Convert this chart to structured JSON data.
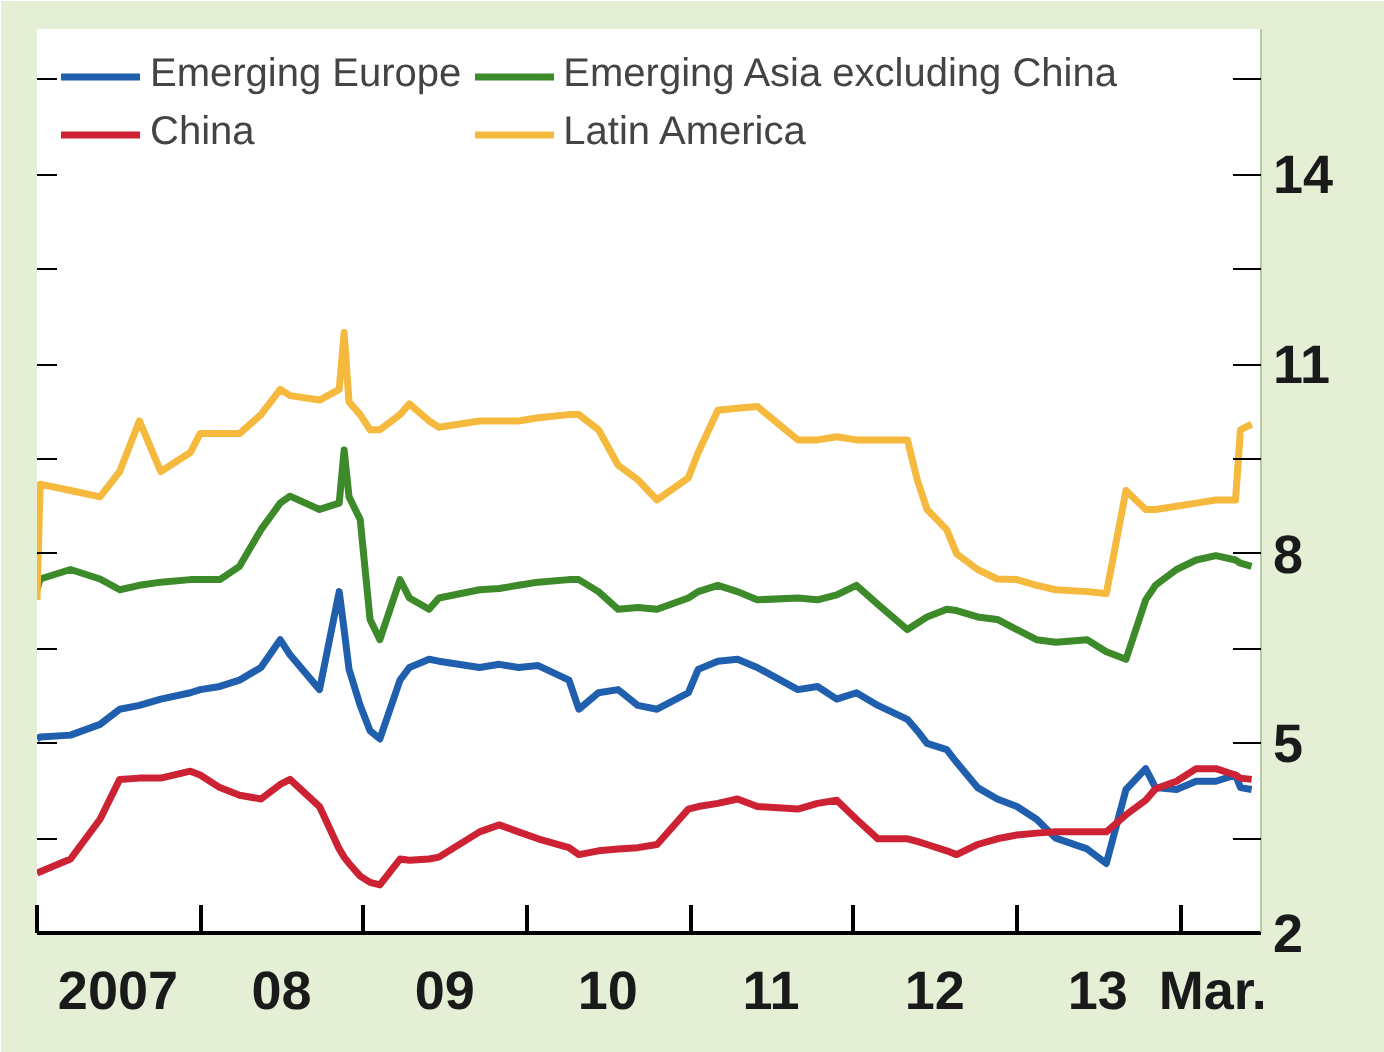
{
  "chart_data": {
    "type": "line",
    "x": [
      "2007-01-01",
      "2007-01-08",
      "2007-03-17",
      "2007-05-22",
      "2007-07-05",
      "2007-08-18",
      "2007-10-05",
      "2007-12-10",
      "2008-01-01",
      "2008-02-14",
      "2008-03-29",
      "2008-05-16",
      "2008-06-28",
      "2008-07-20",
      "2008-09-24",
      "2008-11-07",
      "2008-11-18",
      "2008-11-29",
      "2008-12-24",
      "2009-01-15",
      "2009-02-06",
      "2009-03-23",
      "2009-04-13",
      "2009-05-27",
      "2009-06-18",
      "2009-09-17",
      "2009-10-31",
      "2009-12-13",
      "2010-01-26",
      "2010-04-05",
      "2010-04-27",
      "2010-06-10",
      "2010-07-24",
      "2010-09-06",
      "2010-10-19",
      "2010-12-28",
      "2011-01-19",
      "2011-03-04",
      "2011-04-17",
      "2011-05-31",
      "2011-08-30",
      "2011-10-13",
      "2011-11-25",
      "2012-01-08",
      "2012-02-25",
      "2012-05-01",
      "2012-05-23",
      "2012-06-14",
      "2012-07-28",
      "2012-08-19",
      "2012-10-05",
      "2012-11-18",
      "2013-01-01",
      "2013-02-14",
      "2013-03-29",
      "2013-06-07",
      "2013-07-20",
      "2013-09-02",
      "2013-10-16",
      "2013-11-07",
      "2013-12-24",
      "2014-02-06",
      "2014-03-22",
      "2014-05-05",
      "2014-05-16",
      "2014-06-10"
    ],
    "series": [
      {
        "name": "Emerging Europe",
        "color": "#1f5fad",
        "values": [
          5.07,
          5.1,
          5.13,
          5.3,
          5.54,
          5.6,
          5.7,
          5.8,
          5.85,
          5.9,
          6.0,
          6.2,
          6.64,
          6.4,
          5.85,
          7.4,
          6.8,
          6.17,
          5.6,
          5.2,
          5.07,
          6.0,
          6.2,
          6.33,
          6.3,
          6.2,
          6.25,
          6.2,
          6.23,
          6.0,
          5.54,
          5.8,
          5.85,
          5.6,
          5.54,
          5.8,
          6.17,
          6.3,
          6.33,
          6.2,
          5.85,
          5.9,
          5.7,
          5.8,
          5.6,
          5.38,
          5.2,
          5.0,
          4.9,
          4.7,
          4.3,
          4.12,
          4.0,
          3.8,
          3.5,
          3.33,
          3.1,
          4.27,
          4.6,
          4.3,
          4.27,
          4.4,
          4.4,
          4.5,
          4.3,
          4.27
        ]
      },
      {
        "name": "China",
        "color": "#cc2233",
        "values": [
          2.95,
          2.97,
          3.17,
          3.8,
          4.43,
          4.45,
          4.45,
          4.56,
          4.5,
          4.3,
          4.18,
          4.12,
          4.35,
          4.43,
          4.0,
          3.33,
          3.2,
          3.1,
          2.9,
          2.8,
          2.76,
          3.17,
          3.15,
          3.17,
          3.2,
          3.6,
          3.71,
          3.6,
          3.49,
          3.35,
          3.24,
          3.3,
          3.33,
          3.35,
          3.4,
          3.96,
          4.0,
          4.05,
          4.12,
          4.0,
          3.96,
          4.05,
          4.1,
          3.8,
          3.49,
          3.49,
          3.45,
          3.4,
          3.3,
          3.24,
          3.4,
          3.49,
          3.55,
          3.58,
          3.6,
          3.6,
          3.6,
          3.87,
          4.1,
          4.28,
          4.4,
          4.6,
          4.6,
          4.5,
          4.45,
          4.43
        ]
      },
      {
        "name": "Emerging Asia excluding China",
        "color": "#3d8a2a",
        "values": [
          7.43,
          7.6,
          7.75,
          7.6,
          7.43,
          7.5,
          7.55,
          7.59,
          7.59,
          7.59,
          7.8,
          8.38,
          8.8,
          8.91,
          8.7,
          8.8,
          9.64,
          8.9,
          8.54,
          6.96,
          6.64,
          7.59,
          7.3,
          7.12,
          7.3,
          7.43,
          7.45,
          7.5,
          7.55,
          7.59,
          7.59,
          7.4,
          7.12,
          7.15,
          7.12,
          7.3,
          7.4,
          7.5,
          7.4,
          7.27,
          7.3,
          7.27,
          7.35,
          7.5,
          7.2,
          6.8,
          6.9,
          7.0,
          7.12,
          7.1,
          7.0,
          6.96,
          6.8,
          6.64,
          6.6,
          6.64,
          6.45,
          6.33,
          7.27,
          7.5,
          7.75,
          7.9,
          7.97,
          7.9,
          7.85,
          7.8
        ]
      },
      {
        "name": "Latin America",
        "color": "#f5b93e",
        "values": [
          7.27,
          9.1,
          9.0,
          8.9,
          9.3,
          10.1,
          9.3,
          9.6,
          9.9,
          9.9,
          9.9,
          10.2,
          10.6,
          10.5,
          10.43,
          10.6,
          11.5,
          10.4,
          10.2,
          9.96,
          9.96,
          10.2,
          10.37,
          10.1,
          10.0,
          10.1,
          10.1,
          10.1,
          10.15,
          10.2,
          10.2,
          9.96,
          9.4,
          9.17,
          8.85,
          9.2,
          9.6,
          10.27,
          10.3,
          10.33,
          9.8,
          9.8,
          9.85,
          9.8,
          9.8,
          9.8,
          9.17,
          8.7,
          8.38,
          8.0,
          7.75,
          7.6,
          7.59,
          7.5,
          7.43,
          7.4,
          7.37,
          9.0,
          8.7,
          8.7,
          8.75,
          8.8,
          8.85,
          8.85,
          9.96,
          10.05
        ]
      }
    ],
    "xlim": [
      "2007-01-01",
      "2014-07-01"
    ],
    "xticks": [
      {
        "value": "2007-01-01",
        "label": null
      },
      {
        "value": "2008-01-01",
        "label": null
      },
      {
        "value": "2009-01-01",
        "label": null
      },
      {
        "value": "2010-01-01",
        "label": null
      },
      {
        "value": "2011-01-01",
        "label": null
      },
      {
        "value": "2012-01-01",
        "label": null
      },
      {
        "value": "2013-01-01",
        "label": null
      },
      {
        "value": "2014-01-01",
        "label": null
      },
      {
        "value": "2007-07-01",
        "label": "2007"
      },
      {
        "value": "2008-07-01",
        "label": "08"
      },
      {
        "value": "2009-07-01",
        "label": "09"
      },
      {
        "value": "2010-07-01",
        "label": "10"
      },
      {
        "value": "2011-07-01",
        "label": "11"
      },
      {
        "value": "2012-07-01",
        "label": "12"
      },
      {
        "value": "2013-07-01",
        "label": "13"
      },
      {
        "value": "2014-03-15",
        "label": "Mar."
      }
    ],
    "ylim": [
      2,
      16.3
    ],
    "yticks": [
      2,
      {
        "value": 3.5,
        "label": null
      },
      5,
      {
        "value": 6.5,
        "label": null
      },
      8,
      {
        "value": 9.5,
        "label": null
      },
      11,
      {
        "value": 12.5,
        "label": null
      },
      14,
      {
        "value": 15.5,
        "label": null
      }
    ],
    "legend": "top left",
    "grid": false,
    "line_style": "solid",
    "marker": "none"
  }
}
